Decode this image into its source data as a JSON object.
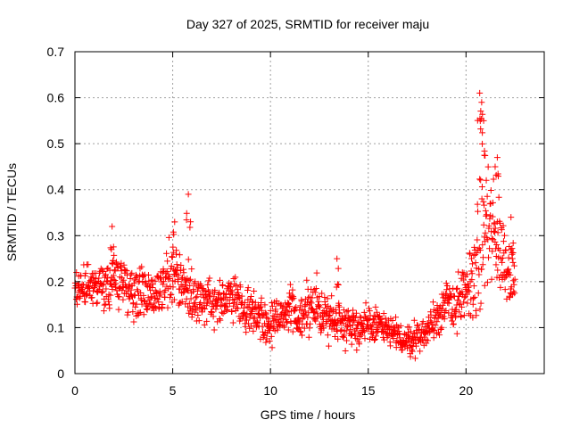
{
  "chart_data": {
    "type": "scatter",
    "title": "Day 327 of 2025, SRMTID for receiver maju",
    "xlabel": "GPS time / hours",
    "ylabel": "SRMTID / TECUs",
    "xlim": [
      0,
      24
    ],
    "ylim": [
      0,
      0.7
    ],
    "x_ticks": [
      0,
      5,
      10,
      15,
      20
    ],
    "x_tick_labels": [
      "0",
      "5",
      "10",
      "15",
      "20"
    ],
    "y_ticks": [
      0,
      0.1,
      0.2,
      0.3,
      0.4,
      0.5,
      0.6,
      0.7
    ],
    "y_tick_labels": [
      "0",
      "0.1",
      "0.2",
      "0.3",
      "0.4",
      "0.5",
      "0.6",
      "0.7"
    ],
    "grid": true,
    "marker": "+",
    "series_color": "#ff0000",
    "series": [
      {
        "name": "SRMTID",
        "envelope": {
          "x": [
            0,
            0.5,
            1,
            1.5,
            2,
            2.5,
            3,
            3.5,
            4,
            4.5,
            5,
            5.5,
            6,
            6.5,
            7,
            7.5,
            8,
            8.5,
            9,
            9.5,
            10,
            10.5,
            11,
            11.5,
            12,
            12.5,
            13,
            13.5,
            14,
            14.5,
            15,
            15.5,
            16,
            16.5,
            17,
            17.5,
            18,
            18.5,
            19,
            19.5,
            20,
            20.5,
            21,
            21.5,
            22,
            22.5
          ],
          "center": [
            0.2,
            0.19,
            0.2,
            0.18,
            0.21,
            0.2,
            0.17,
            0.18,
            0.17,
            0.19,
            0.22,
            0.2,
            0.17,
            0.16,
            0.15,
            0.15,
            0.17,
            0.15,
            0.13,
            0.13,
            0.1,
            0.12,
            0.14,
            0.13,
            0.14,
            0.14,
            0.12,
            0.12,
            0.11,
            0.1,
            0.1,
            0.11,
            0.09,
            0.08,
            0.07,
            0.08,
            0.09,
            0.13,
            0.15,
            0.15,
            0.17,
            0.23,
            0.32,
            0.3,
            0.25,
            0.2
          ],
          "spread": [
            0.05,
            0.05,
            0.05,
            0.06,
            0.07,
            0.06,
            0.07,
            0.06,
            0.07,
            0.08,
            0.09,
            0.08,
            0.07,
            0.06,
            0.06,
            0.06,
            0.06,
            0.06,
            0.06,
            0.06,
            0.05,
            0.05,
            0.07,
            0.07,
            0.07,
            0.07,
            0.06,
            0.06,
            0.05,
            0.05,
            0.05,
            0.05,
            0.04,
            0.04,
            0.04,
            0.04,
            0.04,
            0.06,
            0.06,
            0.07,
            0.08,
            0.13,
            0.2,
            0.14,
            0.1,
            0.07
          ]
        },
        "peaks": [
          {
            "x": 1.9,
            "y": 0.32
          },
          {
            "x": 5.1,
            "y": 0.33
          },
          {
            "x": 5.8,
            "y": 0.39
          },
          {
            "x": 13.4,
            "y": 0.25
          },
          {
            "x": 20.7,
            "y": 0.61
          },
          {
            "x": 20.8,
            "y": 0.59
          },
          {
            "x": 20.9,
            "y": 0.55
          },
          {
            "x": 21.6,
            "y": 0.47
          },
          {
            "x": 22.3,
            "y": 0.34
          }
        ],
        "count": 1400
      }
    ]
  }
}
